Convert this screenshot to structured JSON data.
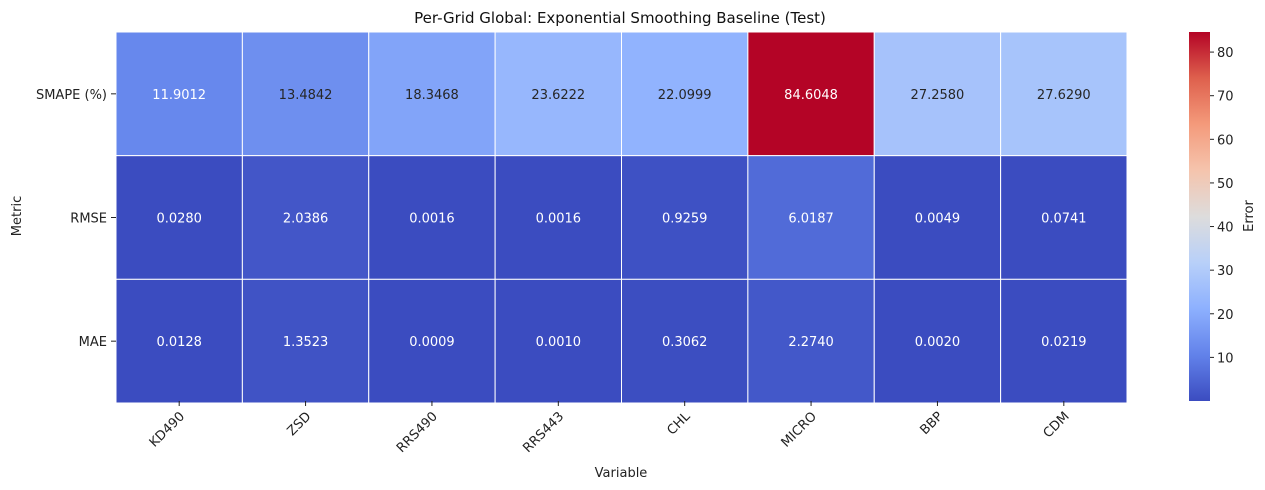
{
  "chart_data": {
    "type": "heatmap",
    "title": "Per-Grid Global: Exponential Smoothing Baseline (Test)",
    "xlabel": "Variable",
    "ylabel": "Metric",
    "x_categories": [
      "KD490",
      "ZSD",
      "RRS490",
      "RRS443",
      "CHL",
      "MICRO",
      "BBP",
      "CDM"
    ],
    "y_categories": [
      "SMAPE (%)",
      "RMSE",
      "MAE"
    ],
    "values": [
      [
        11.9012,
        13.4842,
        18.3468,
        23.6222,
        22.0999,
        84.6048,
        27.258,
        27.629
      ],
      [
        0.028,
        2.0386,
        0.0016,
        0.0016,
        0.9259,
        6.0187,
        0.0049,
        0.0741
      ],
      [
        0.0128,
        1.3523,
        0.0009,
        0.001,
        0.3062,
        2.274,
        0.002,
        0.0219
      ]
    ],
    "value_labels": [
      [
        "11.9012",
        "13.4842",
        "18.3468",
        "23.6222",
        "22.0999",
        "84.6048",
        "27.2580",
        "27.6290"
      ],
      [
        "0.0280",
        "2.0386",
        "0.0016",
        "0.0016",
        "0.9259",
        "6.0187",
        "0.0049",
        "0.0741"
      ],
      [
        "0.0128",
        "1.3523",
        "0.0009",
        "0.0010",
        "0.3062",
        "2.2740",
        "0.0020",
        "0.0219"
      ]
    ],
    "colormap": "coolwarm",
    "vmin": 0.0009,
    "vmax": 84.6048,
    "colorbar": {
      "label": "Error",
      "ticks": [
        10,
        20,
        30,
        40,
        50,
        60,
        70,
        80
      ],
      "tick_labels": [
        "10",
        "20",
        "30",
        "40",
        "50",
        "60",
        "70",
        "80"
      ]
    },
    "x_tick_rotation_deg": 45,
    "grid": false,
    "legend": "colorbar-right"
  }
}
